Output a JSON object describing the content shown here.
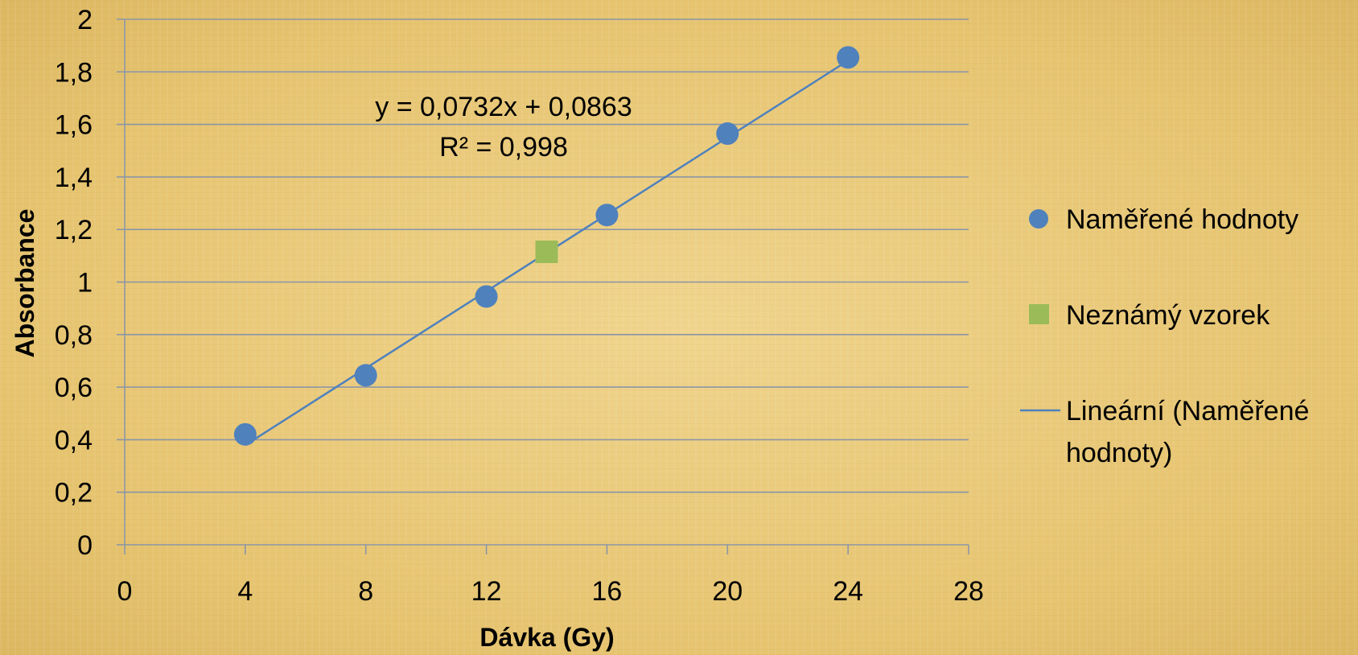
{
  "chart_data": {
    "type": "scatter",
    "xlabel": "Dávka (Gy)",
    "ylabel": "Absorbance",
    "xlim": [
      0,
      28
    ],
    "ylim": [
      0,
      2
    ],
    "x_ticks": [
      0,
      4,
      8,
      12,
      16,
      20,
      24,
      28
    ],
    "y_ticks": [
      0,
      0.2,
      0.4,
      0.6,
      0.8,
      1,
      1.2,
      1.4,
      1.6,
      1.8,
      2
    ],
    "x_tick_labels": [
      "0",
      "4",
      "8",
      "12",
      "16",
      "20",
      "24",
      "28"
    ],
    "y_tick_labels": [
      "0",
      "0,2",
      "0,4",
      "0,6",
      "0,8",
      "1",
      "1,2",
      "1,4",
      "1,6",
      "1,8",
      "2"
    ],
    "grid": "horizontal",
    "legend_position": "right",
    "series": [
      {
        "name": "Naměřené hodnoty",
        "marker": "circle",
        "color": "#4f81bd",
        "x": [
          4,
          8,
          12,
          16,
          20,
          24
        ],
        "y": [
          0.42,
          0.645,
          0.945,
          1.255,
          1.565,
          1.855
        ]
      },
      {
        "name": "Neznámý vzorek",
        "marker": "square",
        "color": "#9bbb59",
        "x": [
          14
        ],
        "y": [
          1.115
        ]
      }
    ],
    "trendline": {
      "name": "Lineární (Naměřené hodnoty)",
      "name_lines": [
        "Lineární (Naměřené",
        "hodnoty)"
      ],
      "color": "#4f81bd",
      "slope": 0.0732,
      "intercept": 0.0863,
      "x_range": [
        4,
        24
      ],
      "equation": "y = 0,0732x + 0,0863",
      "r_squared": "R² = 0,998"
    }
  }
}
